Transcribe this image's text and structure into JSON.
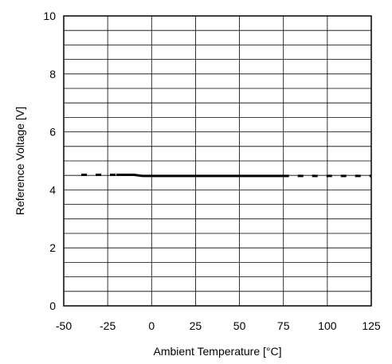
{
  "chart_data": {
    "type": "line",
    "title": "",
    "xlabel": "Ambient Temperature [°C]",
    "ylabel": "Reference Voltage [V]",
    "xlim": [
      -50,
      125
    ],
    "ylim": [
      0,
      10
    ],
    "x_ticks": [
      -50,
      -25,
      0,
      25,
      50,
      75,
      100,
      125
    ],
    "y_ticks": [
      0,
      2,
      4,
      6,
      8,
      10
    ],
    "x_minor_step": 25,
    "y_minor_step": 0.5,
    "grid": true,
    "legend": "none",
    "series": [
      {
        "style": "dashed",
        "x": [
          -40,
          -20
        ],
        "y": [
          4.52,
          4.52
        ]
      },
      {
        "style": "solid",
        "x": [
          -20,
          -10,
          -5,
          0,
          25,
          50,
          75
        ],
        "y": [
          4.52,
          4.52,
          4.48,
          4.48,
          4.48,
          4.48,
          4.48
        ]
      },
      {
        "style": "dashed",
        "x": [
          75,
          125
        ],
        "y": [
          4.48,
          4.48
        ]
      }
    ]
  }
}
